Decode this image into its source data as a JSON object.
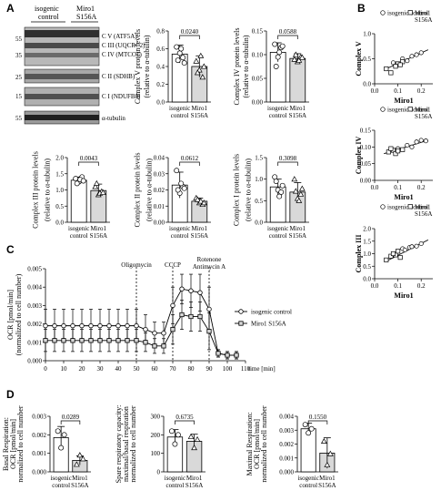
{
  "colors": {
    "control_fill": "#ffffff",
    "mutant_fill": "#d9d9d9",
    "stroke": "#000000"
  },
  "panels": {
    "A": "A",
    "B": "B",
    "C": "C",
    "D": "D"
  },
  "western_blot": {
    "header_left": [
      "isogenic",
      "control"
    ],
    "header_right": [
      "Miro1",
      "S156A"
    ],
    "bands": [
      {
        "marker": "55",
        "label": "C V (ATF5A)"
      },
      {
        "marker": "",
        "label": "C III (UQCRC2)"
      },
      {
        "marker": "35",
        "label": "C IV (MTCO1)"
      },
      {
        "marker": "25",
        "label": "C II (SDHB)"
      },
      {
        "marker": "15",
        "label": "C I (NDUFB8)"
      },
      {
        "marker": "55",
        "label": "α-tubulin"
      }
    ]
  },
  "chart_data": [
    {
      "id": "A_cV",
      "type": "bar",
      "categories": [
        "isogenic control",
        "Miro1 S156A"
      ],
      "ylabel": [
        "Complex V protein levels",
        "(relative to α-tubulin)"
      ],
      "ylim": [
        0,
        0.8
      ],
      "yticks": [
        "0.0",
        "0.2",
        "0.4",
        "0.6",
        "0.8"
      ],
      "values": [
        0.54,
        0.4
      ],
      "err": [
        0.1,
        0.12
      ],
      "pvalue": "0.0240",
      "points": [
        [
          0.62,
          0.55,
          0.5,
          0.47,
          0.6,
          0.44
        ],
        [
          0.46,
          0.36,
          0.28,
          0.33,
          0.52,
          0.4
        ]
      ]
    },
    {
      "id": "A_cIV",
      "type": "bar",
      "categories": [
        "isogenic control",
        "Miro1 S156A"
      ],
      "ylabel": [
        "Complex IV protein levels",
        "(relative to α-tubulin)"
      ],
      "ylim": [
        0,
        0.15
      ],
      "yticks": [
        "0.00",
        "0.05",
        "0.10",
        "0.15"
      ],
      "values": [
        0.105,
        0.092
      ],
      "err": [
        0.02,
        0.01
      ],
      "pvalue": "0.0588",
      "points": [
        [
          0.122,
          0.095,
          0.115,
          0.075,
          0.105,
          0.118
        ],
        [
          0.09,
          0.085,
          0.095,
          0.1,
          0.088,
          0.094
        ]
      ]
    },
    {
      "id": "A_cIII",
      "type": "bar",
      "categories": [
        "isogenic control",
        "Miro1 S156A"
      ],
      "ylabel": [
        "Complex III protein levels",
        "(relative to α-tubulin)"
      ],
      "ylim": [
        0,
        2.0
      ],
      "yticks": [
        "0.0",
        "0.5",
        "1.0",
        "1.5",
        "2.0"
      ],
      "values": [
        1.3,
        0.98
      ],
      "err": [
        0.1,
        0.2
      ],
      "pvalue": "0.0043",
      "points": [
        [
          1.35,
          1.25,
          1.4,
          1.2,
          1.32,
          1.28
        ],
        [
          1.1,
          0.85,
          0.95,
          1.2,
          0.9,
          0.92
        ]
      ]
    },
    {
      "id": "A_cII",
      "type": "bar",
      "categories": [
        "isogenic control",
        "Miro1 S156A"
      ],
      "ylabel": [
        "Complex II protein levels",
        "(relative to α-tubulin)"
      ],
      "ylim": [
        0,
        0.04
      ],
      "yticks": [
        "0.00",
        "0.01",
        "0.02",
        "0.03",
        "0.04"
      ],
      "values": [
        0.023,
        0.013
      ],
      "err": [
        0.008,
        0.002
      ],
      "pvalue": "0.0612",
      "points": [
        [
          0.032,
          0.018,
          0.022,
          0.02,
          0.024,
          0.021
        ],
        [
          0.015,
          0.012,
          0.011,
          0.014,
          0.013,
          0.012
        ]
      ]
    },
    {
      "id": "A_cI",
      "type": "bar",
      "categories": [
        "isogenic control",
        "Miro1 S156A"
      ],
      "ylabel": [
        "Complex I protein levels",
        "(relative to α-tubulin)"
      ],
      "ylim": [
        0,
        1.5
      ],
      "yticks": [
        "0.0",
        "0.5",
        "1.0",
        "1.5"
      ],
      "values": [
        0.82,
        0.7
      ],
      "err": [
        0.18,
        0.22
      ],
      "pvalue": "0.3098",
      "points": [
        [
          1.05,
          0.75,
          0.7,
          0.95,
          0.6,
          0.85
        ],
        [
          1.0,
          0.55,
          0.65,
          0.72,
          0.5,
          0.78
        ]
      ]
    },
    {
      "id": "B_cV",
      "type": "scatter",
      "xlabel": "Miro1",
      "ylabel": "Complex V",
      "xlim": [
        0,
        0.25
      ],
      "ylim": [
        0,
        1.0
      ],
      "xticks": [
        "0.0",
        "0.1",
        "0.2"
      ],
      "yticks": [
        "0.0",
        "0.5",
        "1.0"
      ],
      "legend": [
        "isogenic control",
        "Miro1 S156A"
      ],
      "fit": [
        [
          0.05,
          0.3
        ],
        [
          0.23,
          0.68
        ]
      ],
      "control": [
        [
          0.08,
          0.42
        ],
        [
          0.12,
          0.5
        ],
        [
          0.16,
          0.55
        ],
        [
          0.2,
          0.62
        ],
        [
          0.14,
          0.46
        ],
        [
          0.18,
          0.58
        ]
      ],
      "mutant": [
        [
          0.05,
          0.3
        ],
        [
          0.07,
          0.22
        ],
        [
          0.1,
          0.4
        ],
        [
          0.09,
          0.35
        ],
        [
          0.12,
          0.44
        ],
        [
          0.11,
          0.38
        ]
      ]
    },
    {
      "id": "B_cIV",
      "type": "scatter",
      "xlabel": "Miro1",
      "ylabel": "Complex IV",
      "xlim": [
        0,
        0.25
      ],
      "ylim": [
        0,
        0.15
      ],
      "xticks": [
        "0.0",
        "0.1",
        "0.2"
      ],
      "yticks": [
        "0.00",
        "0.05",
        "0.10",
        "0.15"
      ],
      "legend": [
        "isogenic control",
        "Miro1 S156A"
      ],
      "fit": [
        [
          0.04,
          0.08
        ],
        [
          0.23,
          0.12
        ]
      ],
      "control": [
        [
          0.1,
          0.095
        ],
        [
          0.14,
          0.105
        ],
        [
          0.18,
          0.115
        ],
        [
          0.2,
          0.12
        ],
        [
          0.16,
          0.1
        ],
        [
          0.22,
          0.118
        ]
      ],
      "mutant": [
        [
          0.06,
          0.085
        ],
        [
          0.08,
          0.09
        ],
        [
          0.09,
          0.08
        ],
        [
          0.1,
          0.088
        ],
        [
          0.12,
          0.092
        ],
        [
          0.07,
          0.095
        ]
      ]
    },
    {
      "id": "B_cIII",
      "type": "scatter",
      "xlabel": "Miro1",
      "ylabel": "Complex III",
      "xlim": [
        0,
        0.25
      ],
      "ylim": [
        0,
        2.0
      ],
      "xticks": [
        "0.0",
        "0.1",
        "0.2"
      ],
      "yticks": [
        "0.0",
        "0.5",
        "1.0",
        "1.5",
        "2.0"
      ],
      "legend": [
        "isogenic control",
        "Miro1 S156A"
      ],
      "fit": [
        [
          0.05,
          0.7
        ],
        [
          0.23,
          1.55
        ]
      ],
      "control": [
        [
          0.12,
          1.2
        ],
        [
          0.15,
          1.25
        ],
        [
          0.18,
          1.3
        ],
        [
          0.2,
          1.4
        ],
        [
          0.16,
          1.28
        ],
        [
          0.13,
          1.15
        ]
      ],
      "mutant": [
        [
          0.05,
          0.75
        ],
        [
          0.07,
          0.9
        ],
        [
          0.09,
          0.95
        ],
        [
          0.1,
          1.1
        ],
        [
          0.08,
          1.0
        ],
        [
          0.11,
          0.85
        ]
      ]
    },
    {
      "id": "C",
      "type": "line",
      "xlabel": "time [min]",
      "ylabel": [
        "OCR [pmol/min]",
        "(normalized to cell number)"
      ],
      "xlim": [
        0,
        110
      ],
      "ylim": [
        0,
        0.005
      ],
      "xticks": [
        "0",
        "10",
        "20",
        "30",
        "40",
        "50",
        "60",
        "70",
        "80",
        "90",
        "100",
        "110"
      ],
      "yticks": [
        "0.000",
        "0.001",
        "0.002",
        "0.003",
        "0.004",
        "0.005"
      ],
      "injections": [
        {
          "x": 50,
          "label": [
            "Oligomycin"
          ]
        },
        {
          "x": 70,
          "label": [
            "CCCP"
          ]
        },
        {
          "x": 90,
          "label": [
            "Rotenone",
            "Antimycin A"
          ]
        }
      ],
      "series": [
        {
          "name": "isogenic control",
          "x": [
            0,
            5,
            10,
            15,
            20,
            25,
            30,
            35,
            40,
            45,
            50,
            55,
            60,
            65,
            70,
            75,
            80,
            85,
            90,
            95,
            100,
            105
          ],
          "y": [
            0.0019,
            0.0019,
            0.0019,
            0.0019,
            0.0019,
            0.0019,
            0.0019,
            0.0019,
            0.0019,
            0.0019,
            0.0019,
            0.0017,
            0.0015,
            0.0015,
            0.003,
            0.0039,
            0.0038,
            0.0037,
            0.0028,
            0.0004,
            0.0003,
            0.0003
          ],
          "err": [
            0.0009,
            0.0009,
            0.0009,
            0.0009,
            0.0009,
            0.0009,
            0.0009,
            0.0009,
            0.0009,
            0.0009,
            0.0009,
            0.0008,
            0.0006,
            0.0006,
            0.001,
            0.0008,
            0.0009,
            0.001,
            0.0012,
            0.0002,
            0.0002,
            0.0002
          ]
        },
        {
          "name": "Miro1 S156A",
          "x": [
            0,
            5,
            10,
            15,
            20,
            25,
            30,
            35,
            40,
            45,
            50,
            55,
            60,
            65,
            70,
            75,
            80,
            85,
            90,
            95,
            100,
            105
          ],
          "y": [
            0.0011,
            0.0011,
            0.0011,
            0.0011,
            0.0011,
            0.0011,
            0.0011,
            0.0011,
            0.0011,
            0.0011,
            0.0011,
            0.001,
            0.0008,
            0.0008,
            0.0017,
            0.0025,
            0.0024,
            0.0024,
            0.0016,
            0.0004,
            0.0003,
            0.0003
          ],
          "err": [
            0.0006,
            0.0006,
            0.0006,
            0.0006,
            0.0006,
            0.0006,
            0.0006,
            0.0006,
            0.0006,
            0.0006,
            0.0006,
            0.0005,
            0.0004,
            0.0004,
            0.0008,
            0.0008,
            0.0008,
            0.0008,
            0.001,
            0.0002,
            0.0002,
            0.0002
          ]
        }
      ]
    },
    {
      "id": "D_basal",
      "type": "bar",
      "categories": [
        "isogenic control",
        "Miro1 S156A"
      ],
      "ylabel": [
        "Basal Respiration:",
        "OCR [pmol/min]",
        "normalized to cell number"
      ],
      "ylim": [
        0,
        0.003
      ],
      "yticks": [
        "0.000",
        "0.001",
        "0.002",
        "0.003"
      ],
      "values": [
        0.00185,
        0.00062
      ],
      "err": [
        0.0006,
        0.00025
      ],
      "pvalue": "0.0289",
      "points": [
        [
          0.0022,
          0.0013,
          0.002
        ],
        [
          0.0004,
          0.0009,
          0.0007
        ]
      ]
    },
    {
      "id": "D_spare",
      "type": "bar",
      "categories": [
        "isogenic control",
        "Miro1 S156A"
      ],
      "ylabel": [
        "Spare respiratory capacity:",
        "maximal/basal respiration",
        "normalized to cell number"
      ],
      "ylim": [
        0,
        300
      ],
      "yticks": [
        "0",
        "100",
        "200",
        "300"
      ],
      "values": [
        188,
        165
      ],
      "err": [
        40,
        38
      ],
      "pvalue": "0.6735",
      "points": [
        [
          220,
          150,
          200
        ],
        [
          190,
          130,
          175
        ]
      ]
    },
    {
      "id": "D_max",
      "type": "bar",
      "categories": [
        "isogenic control",
        "Miro1 S156A"
      ],
      "ylabel": [
        "Maximal Respiration:",
        "OCR [pmol/min]",
        "normalized to cell number"
      ],
      "ylim": [
        0,
        0.004
      ],
      "yticks": [
        "0.000",
        "0.001",
        "0.002",
        "0.003",
        "0.004"
      ],
      "values": [
        0.0031,
        0.00135
      ],
      "err": [
        0.0004,
        0.0011
      ],
      "pvalue": "0.1550",
      "points": [
        [
          0.0034,
          0.0028,
          0.0031
        ],
        [
          0.0022,
          0.0005,
          0.0013
        ]
      ]
    }
  ]
}
